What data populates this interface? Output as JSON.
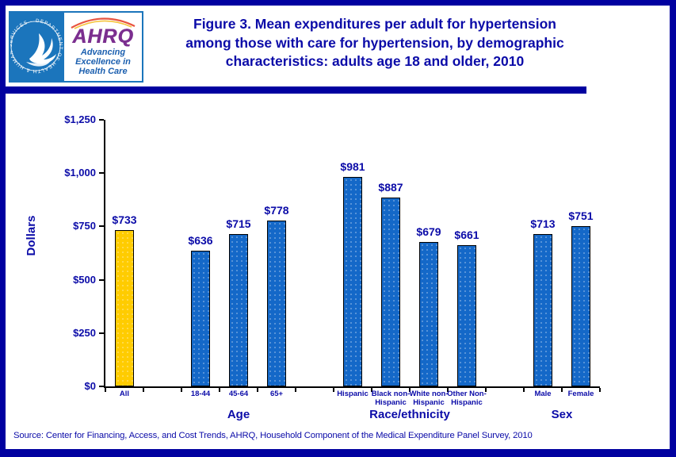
{
  "header": {
    "title_lines": [
      "Figure 3. Mean expenditures per adult for hypertension",
      "among those with care for hypertension, by demographic",
      "characteristics: adults age 18 and older, 2010"
    ],
    "logo": {
      "hhs_seal_text": "DEPARTMENT OF HEALTH & HUMAN SERVICES · USA",
      "ahrq_acronym": "AHRQ",
      "tagline_lines": [
        "Advancing",
        "Excellence in",
        "Health Care"
      ]
    }
  },
  "page": {
    "source_note": "Source: Center for Financing, Access, and Cost Trends, AHRQ, Household Component of the Medical Expenditure Panel Survey, 2010"
  },
  "chart_data": {
    "type": "bar",
    "title": "Figure 3. Mean expenditures per adult for hypertension among those with care for hypertension, by demographic characteristics: adults age 18 and older, 2010",
    "xlabel": "",
    "ylabel": "Dollars",
    "ylim": [
      0,
      1250
    ],
    "ytick_interval": 250,
    "ytick_labels": [
      "$0",
      "$250",
      "$500",
      "$750",
      "$1,000",
      "$1,250"
    ],
    "grid": false,
    "legend": false,
    "groups": [
      {
        "label": "",
        "bars": [
          {
            "category": "All",
            "value": 733,
            "value_label": "$733",
            "highlight": true
          }
        ]
      },
      {
        "label": "Age",
        "bars": [
          {
            "category": "18-44",
            "value": 636,
            "value_label": "$636"
          },
          {
            "category": "45-64",
            "value": 715,
            "value_label": "$715"
          },
          {
            "category": "65+",
            "value": 778,
            "value_label": "$778"
          }
        ]
      },
      {
        "label": "Race/ethnicity",
        "bars": [
          {
            "category": "Hispanic",
            "value": 981,
            "value_label": "$981"
          },
          {
            "category": "Black non-\nHispanic",
            "value": 887,
            "value_label": "$887"
          },
          {
            "category": "White non-\nHispanic",
            "value": 679,
            "value_label": "$679"
          },
          {
            "category": "Other Non-\nHispanic",
            "value": 661,
            "value_label": "$661"
          }
        ]
      },
      {
        "label": "Sex",
        "bars": [
          {
            "category": "Male",
            "value": 713,
            "value_label": "$713"
          },
          {
            "category": "Female",
            "value": 751,
            "value_label": "$751"
          }
        ]
      }
    ],
    "colors": {
      "bar_default": "#1468C8",
      "bar_highlight": "#FFCC00",
      "axis": "#000000",
      "text": "#0B0BA8",
      "frame": "#0101A0"
    }
  }
}
